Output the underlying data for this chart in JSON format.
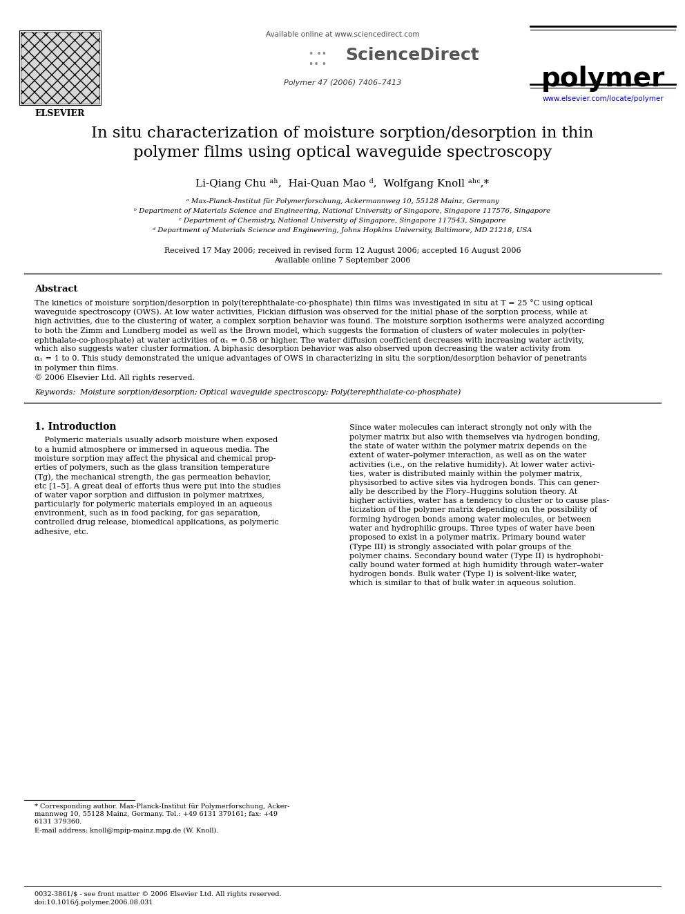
{
  "bg_color": "#ffffff",
  "header": {
    "available_online": "Available online at www.sciencedirect.com",
    "sciencedirect_text": "ScienceDirect",
    "journal_name": "polymer",
    "journal_info": "Polymer 47 (2006) 7406–7413",
    "journal_url": "www.elsevier.com/locate/polymer",
    "elsevier_text": "ELSEVIER"
  },
  "title_line1": "In situ characterization of moisture sorption/desorption in thin",
  "title_line2": "polymer films using optical waveguide spectroscopy",
  "authors": "Li-Qiang Chu ᵃʰ,  Hai-Quan Mao ᵈ,  Wolfgang Knoll ᵃʰᶜ,*",
  "affiliations": [
    "ᵃ Max-Planck-Institut für Polymerforschung, Ackermannweg 10, 55128 Mainz, Germany",
    "ᵇ Department of Materials Science and Engineering, National University of Singapore, Singapore 117576, Singapore",
    "ᶜ Department of Chemistry, National University of Singapore, Singapore 117543, Singapore",
    "ᵈ Department of Materials Science and Engineering, Johns Hopkins University, Baltimore, MD 21218, USA"
  ],
  "received_line1": "Received 17 May 2006; received in revised form 12 August 2006; accepted 16 August 2006",
  "received_line2": "Available online 7 September 2006",
  "abstract_title": "Abstract",
  "abstract_lines": [
    "The kinetics of moisture sorption/desorption in poly(terephthalate-co-phosphate) thin films was investigated in situ at T = 25 °C using optical",
    "waveguide spectroscopy (OWS). At low water activities, Fickian diffusion was observed for the initial phase of the sorption process, while at",
    "high activities, due to the clustering of water, a complex sorption behavior was found. The moisture sorption isotherms were analyzed according",
    "to both the Zimm and Lundberg model as well as the Brown model, which suggests the formation of clusters of water molecules in poly(ter-",
    "ephthalate-co-phosphate) at water activities of α₁ = 0.58 or higher. The water diffusion coefficient decreases with increasing water activity,",
    "which also suggests water cluster formation. A biphasic desorption behavior was also observed upon decreasing the water activity from",
    "α₁ = 1 to 0. This study demonstrated the unique advantages of OWS in characterizing in situ the sorption/desorption behavior of penetrants",
    "in polymer thin films.",
    "© 2006 Elsevier Ltd. All rights reserved."
  ],
  "keywords_line": "Keywords:  Moisture sorption/desorption; Optical waveguide spectroscopy; Poly(terephthalate-co-phosphate)",
  "section1_title": "1. Introduction",
  "col1_lines": [
    "    Polymeric materials usually adsorb moisture when exposed",
    "to a humid atmosphere or immersed in aqueous media. The",
    "moisture sorption may affect the physical and chemical prop-",
    "erties of polymers, such as the glass transition temperature",
    "(Tg), the mechanical strength, the gas permeation behavior,",
    "etc [1–5]. A great deal of efforts thus were put into the studies",
    "of water vapor sorption and diffusion in polymer matrixes,",
    "particularly for polymeric materials employed in an aqueous",
    "environment, such as in food packing, for gas separation,",
    "controlled drug release, biomedical applications, as polymeric",
    "adhesive, etc."
  ],
  "col2_lines": [
    "Since water molecules can interact strongly not only with the",
    "polymer matrix but also with themselves via hydrogen bonding,",
    "the state of water within the polymer matrix depends on the",
    "extent of water–polymer interaction, as well as on the water",
    "activities (i.e., on the relative humidity). At lower water activi-",
    "ties, water is distributed mainly within the polymer matrix,",
    "physisorbed to active sites via hydrogen bonds. This can gener-",
    "ally be described by the Flory–Huggins solution theory. At",
    "higher activities, water has a tendency to cluster or to cause plas-",
    "ticization of the polymer matrix depending on the possibility of",
    "forming hydrogen bonds among water molecules, or between",
    "water and hydrophilic groups. Three types of water have been",
    "proposed to exist in a polymer matrix. Primary bound water",
    "(Type III) is strongly associated with polar groups of the",
    "polymer chains. Secondary bound water (Type II) is hydrophobi-",
    "cally bound water formed at high humidity through water–water",
    "hydrogen bonds. Bulk water (Type I) is solvent-like water,",
    "which is similar to that of bulk water in aqueous solution."
  ],
  "footnote1_lines": [
    "* Corresponding author. Max-Planck-Institut für Polymerforschung, Acker-",
    "mannweg 10, 55128 Mainz, Germany. Tel.: +49 6131 379161; fax: +49",
    "6131 379360."
  ],
  "footnote2": "E-mail address: knoll@mpip-mainz.mpg.de (W. Knoll).",
  "footer_line1": "0032-3861/$ - see front matter © 2006 Elsevier Ltd. All rights reserved.",
  "footer_line2": "doi:10.1016/j.polymer.2006.08.031"
}
